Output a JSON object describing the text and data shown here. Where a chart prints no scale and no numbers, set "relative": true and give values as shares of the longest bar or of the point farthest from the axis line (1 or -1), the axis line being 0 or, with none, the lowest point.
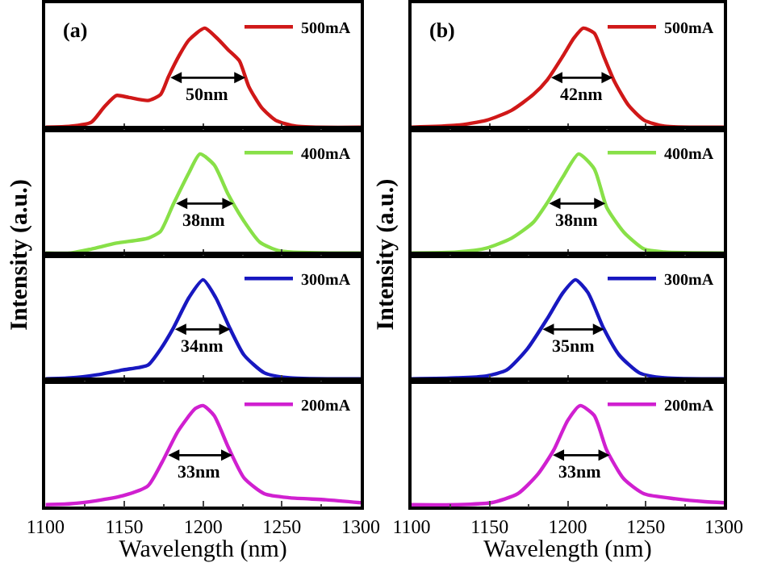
{
  "chart_data": [
    {
      "type": "line",
      "relative": true,
      "xlim": [
        1100,
        1300
      ],
      "xticks": [
        1100,
        1150,
        1200,
        1250,
        1300
      ],
      "tick_labels": false,
      "legend": "top right",
      "annotations": [
        "(a)",
        "50nm"
      ],
      "series": [
        {
          "name": "500mA",
          "color": "#d01818",
          "x": [
            1100,
            1116,
            1129,
            1137,
            1145,
            1153,
            1165,
            1173,
            1178,
            1185,
            1191,
            1201,
            1210,
            1216,
            1223,
            1229,
            1237,
            1246,
            1259,
            1300
          ],
          "values": [
            0,
            0.01,
            0.05,
            0.2,
            0.32,
            0.3,
            0.27,
            0.33,
            0.51,
            0.73,
            0.88,
            1,
            0.88,
            0.78,
            0.67,
            0.41,
            0.2,
            0.07,
            0.01,
            0
          ]
        }
      ]
    },
    {
      "type": "line",
      "relative": true,
      "xlim": [
        1100,
        1300
      ],
      "xticks": [
        1100,
        1150,
        1200,
        1250,
        1300
      ],
      "tick_labels": false,
      "legend": "top right",
      "annotations": [
        "(b)",
        "42nm"
      ],
      "series": [
        {
          "name": "500mA",
          "color": "#d01818",
          "x": [
            1100,
            1129,
            1148,
            1164,
            1178,
            1187,
            1197,
            1204,
            1210,
            1217,
            1223,
            1230,
            1239,
            1249,
            1262,
            1300
          ],
          "values": [
            0,
            0.02,
            0.07,
            0.17,
            0.33,
            0.48,
            0.72,
            0.9,
            1,
            0.95,
            0.72,
            0.46,
            0.22,
            0.07,
            0.01,
            0
          ]
        }
      ]
    },
    {
      "type": "line",
      "relative": true,
      "xlim": [
        1100,
        1300
      ],
      "xticks": [
        1100,
        1150,
        1200,
        1250,
        1300
      ],
      "tick_labels": false,
      "legend": "top right",
      "annotations": [
        "38nm"
      ],
      "series": [
        {
          "name": "400mA",
          "color": "#88e048",
          "x": [
            1100,
            1116,
            1129,
            1145,
            1165,
            1173,
            1181,
            1191,
            1198,
            1207,
            1216,
            1226,
            1236,
            1249,
            1300
          ],
          "values": [
            0,
            0,
            0.04,
            0.1,
            0.15,
            0.22,
            0.49,
            0.81,
            1,
            0.89,
            0.59,
            0.32,
            0.11,
            0.02,
            0
          ]
        }
      ]
    },
    {
      "type": "line",
      "relative": true,
      "xlim": [
        1100,
        1300
      ],
      "xticks": [
        1100,
        1150,
        1200,
        1250,
        1300
      ],
      "tick_labels": false,
      "legend": "top right",
      "annotations": [
        "38nm"
      ],
      "series": [
        {
          "name": "400mA",
          "color": "#88e048",
          "x": [
            1100,
            1129,
            1148,
            1164,
            1178,
            1187,
            1197,
            1207,
            1217,
            1225,
            1236,
            1249,
            1262,
            1300
          ],
          "values": [
            0,
            0.01,
            0.05,
            0.15,
            0.31,
            0.51,
            0.77,
            1,
            0.85,
            0.46,
            0.21,
            0.04,
            0.01,
            0
          ]
        }
      ]
    },
    {
      "type": "line",
      "relative": true,
      "xlim": [
        1100,
        1300
      ],
      "xticks": [
        1100,
        1150,
        1200,
        1250,
        1300
      ],
      "tick_labels": false,
      "legend": "top right",
      "annotations": [
        "34nm"
      ],
      "ylabel": "Intensity (a.u.)",
      "series": [
        {
          "name": "300mA",
          "color": "#1818c0",
          "x": [
            1100,
            1116,
            1132,
            1149,
            1165,
            1173,
            1181,
            1191,
            1200,
            1208,
            1217,
            1226,
            1239,
            1255,
            1300
          ],
          "values": [
            0,
            0.01,
            0.04,
            0.09,
            0.14,
            0.3,
            0.51,
            0.82,
            1,
            0.82,
            0.51,
            0.24,
            0.06,
            0.01,
            0
          ]
        }
      ]
    },
    {
      "type": "line",
      "relative": true,
      "xlim": [
        1100,
        1300
      ],
      "xticks": [
        1100,
        1150,
        1200,
        1250,
        1300
      ],
      "tick_labels": false,
      "legend": "top right",
      "annotations": [
        "35nm"
      ],
      "ylabel": "Intensity (a.u.)",
      "series": [
        {
          "name": "300mA",
          "color": "#1818c0",
          "x": [
            1100,
            1129,
            1148,
            1161,
            1174,
            1187,
            1197,
            1205,
            1213,
            1223,
            1233,
            1246,
            1262,
            1300
          ],
          "values": [
            0,
            0.01,
            0.03,
            0.09,
            0.3,
            0.61,
            0.87,
            1,
            0.87,
            0.51,
            0.24,
            0.06,
            0.01,
            0
          ]
        }
      ]
    },
    {
      "type": "line",
      "relative": true,
      "xlim": [
        1100,
        1300
      ],
      "xticks": [
        1100,
        1150,
        1200,
        1250,
        1300
      ],
      "tick_labels": "x",
      "legend": "top right",
      "xlabel": "Wavelength (nm)",
      "annotations": [
        "33nm"
      ],
      "series": [
        {
          "name": "200mA",
          "color": "#d020d0",
          "x": [
            1100,
            1116,
            1132,
            1149,
            1165,
            1174,
            1184,
            1195,
            1200,
            1207,
            1216,
            1226,
            1239,
            1255,
            1278,
            1300
          ],
          "values": [
            0,
            0.01,
            0.04,
            0.09,
            0.19,
            0.43,
            0.74,
            0.97,
            1,
            0.9,
            0.58,
            0.27,
            0.11,
            0.07,
            0.05,
            0.02
          ]
        }
      ]
    },
    {
      "type": "line",
      "relative": true,
      "xlim": [
        1100,
        1300
      ],
      "xticks": [
        1100,
        1150,
        1200,
        1250,
        1300
      ],
      "tick_labels": "x",
      "legend": "top right",
      "xlabel": "Wavelength (nm)",
      "annotations": [
        "33nm"
      ],
      "series": [
        {
          "name": "200mA",
          "color": "#d020d0",
          "x": [
            1100,
            1129,
            1151,
            1168,
            1181,
            1191,
            1200,
            1208,
            1217,
            1225,
            1236,
            1249,
            1269,
            1288,
            1300
          ],
          "values": [
            0,
            0,
            0.02,
            0.11,
            0.31,
            0.55,
            0.85,
            1,
            0.9,
            0.55,
            0.26,
            0.11,
            0.06,
            0.03,
            0.02
          ]
        }
      ]
    }
  ]
}
